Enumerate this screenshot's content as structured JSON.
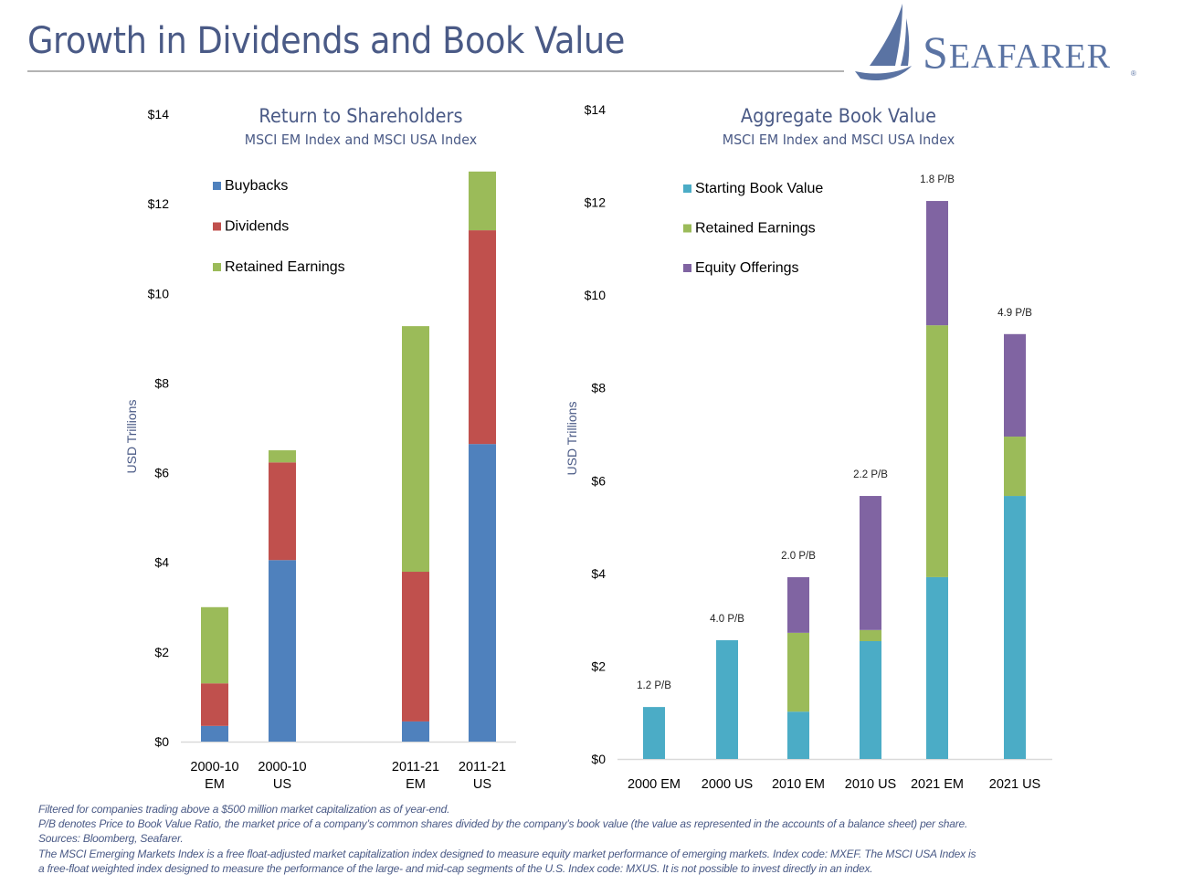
{
  "header": {
    "title": "Growth in Dividends and Book Value",
    "logo_text": "Seafarer",
    "logo_registered_mark": "®"
  },
  "colors": {
    "title_blue": "#4a5a86",
    "buybacks": "#4f81bd",
    "dividends": "#c0504d",
    "retained_earnings": "#9bbb59",
    "starting_book_value": "#4bacc6",
    "equity_offerings": "#8064a2",
    "axis_line": "#d9d9d9",
    "logo_blue": "#5a73a3"
  },
  "chart_data": [
    {
      "type": "bar",
      "stacked": true,
      "title": "Return to Shareholders",
      "subtitle": "MSCI EM Index and MSCI USA Index",
      "xlabel": "",
      "ylabel": "USD Trillions",
      "ylim": [
        0,
        14
      ],
      "yticks": [
        0,
        2,
        4,
        6,
        8,
        10,
        12,
        14
      ],
      "ytick_labels": [
        "$0",
        "$2",
        "$4",
        "$6",
        "$8",
        "$10",
        "$12",
        "$14"
      ],
      "grid": false,
      "legend_position": "top-left",
      "categories": [
        [
          "2000-10",
          "EM"
        ],
        [
          "2000-10",
          "US"
        ],
        [
          "2011-21",
          "EM"
        ],
        [
          "2011-21",
          "US"
        ]
      ],
      "category_gap_after_index": 1,
      "series": [
        {
          "name": "Buybacks",
          "color_key": "buybacks",
          "values": [
            0.35,
            4.05,
            0.45,
            6.64
          ]
        },
        {
          "name": "Dividends",
          "color_key": "dividends",
          "values": [
            0.95,
            2.18,
            3.34,
            4.77
          ]
        },
        {
          "name": "Retained Earnings",
          "color_key": "retained_earnings",
          "values": [
            1.7,
            0.27,
            5.48,
            1.31
          ]
        }
      ]
    },
    {
      "type": "bar",
      "stacked": true,
      "title": "Aggregate Book Value",
      "subtitle": "MSCI EM Index and MSCI USA Index",
      "xlabel": "",
      "ylabel": "USD Trillions",
      "ylim": [
        0,
        14
      ],
      "yticks": [
        0,
        2,
        4,
        6,
        8,
        10,
        12,
        14
      ],
      "ytick_labels": [
        "$0",
        "$2",
        "$4",
        "$6",
        "$8",
        "$10",
        "$12",
        "$14"
      ],
      "grid": false,
      "legend_position": "top-left",
      "categories": [
        [
          "2000 EM"
        ],
        [
          "2000 US"
        ],
        [
          "2010 EM"
        ],
        [
          "2010 US"
        ],
        [
          "2021 EM"
        ],
        [
          "2021 US"
        ]
      ],
      "bar_labels": [
        "1.2 P/B",
        "4.0 P/B",
        "2.0 P/B",
        "2.2 P/B",
        "1.8 P/B",
        "4.9 P/B"
      ],
      "series": [
        {
          "name": "Starting Book Value",
          "color_key": "starting_book_value",
          "values": [
            1.12,
            2.56,
            1.02,
            2.54,
            3.92,
            5.67
          ]
        },
        {
          "name": "Retained Earnings",
          "color_key": "retained_earnings",
          "values": [
            0,
            0,
            1.7,
            0.24,
            5.43,
            1.28
          ]
        },
        {
          "name": "Equity Offerings",
          "color_key": "equity_offerings",
          "values": [
            0,
            0,
            1.2,
            2.89,
            2.68,
            2.21
          ]
        }
      ]
    }
  ],
  "footnotes": [
    "Filtered for companies trading above a $500 million market capitalization as of year-end.",
    "P/B denotes Price to Book Value Ratio, the market price of a company’s common shares divided by the company’s book value (the value as represented in the accounts of a balance sheet) per share.",
    "Sources:  Bloomberg, Seafarer.",
    "The MSCI Emerging Markets Index is a free float-adjusted market capitalization index designed to measure equity market performance of emerging markets.  Index code: MXEF.  The MSCI USA Index is",
    "a free-float weighted index designed to measure the performance of the large- and mid-cap segments of the U.S.  Index code: MXUS.  It is not possible to invest directly in an index."
  ]
}
